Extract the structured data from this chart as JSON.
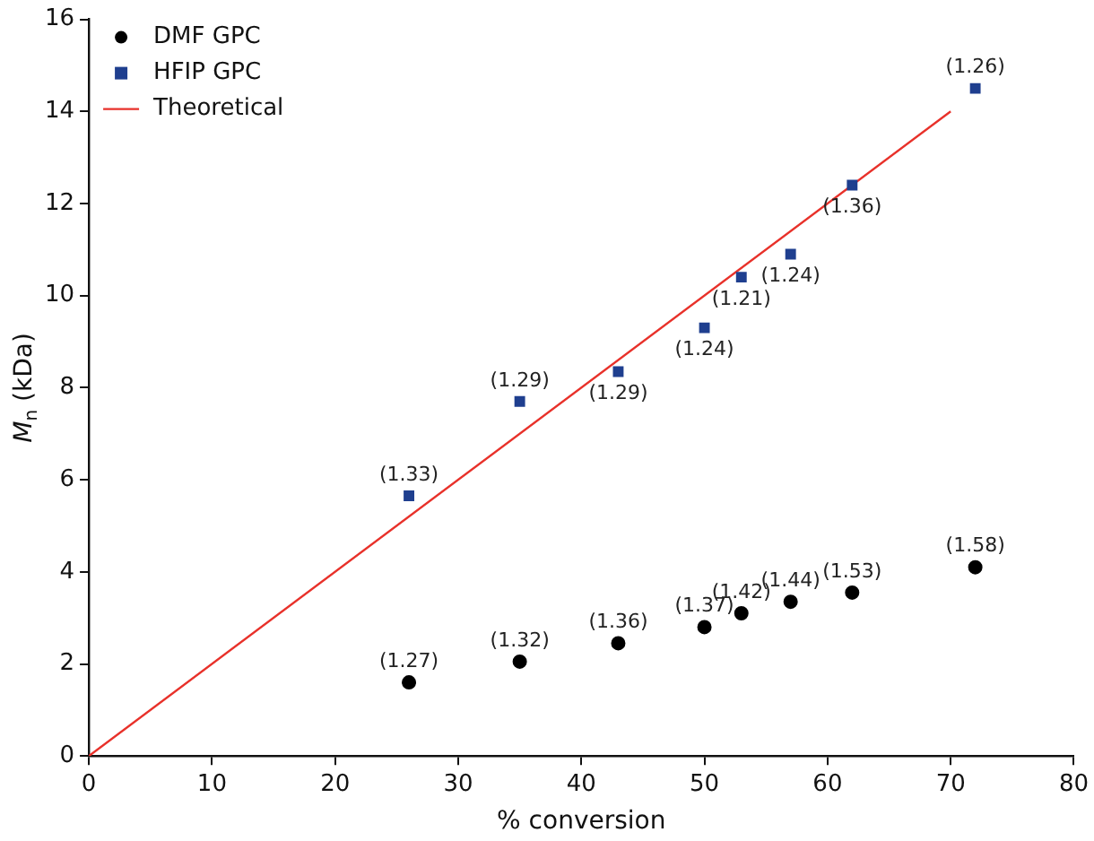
{
  "chart_data": {
    "type": "scatter",
    "xlabel": "% conversion",
    "ylabel": "M$_{n}$ (kDa)",
    "xlim": [
      0,
      80
    ],
    "xticks": [
      0,
      10,
      20,
      30,
      40,
      50,
      60,
      70,
      80
    ],
    "ylim": [
      0,
      16
    ],
    "yticks": [
      0,
      2,
      4,
      6,
      8,
      10,
      12,
      14,
      16
    ],
    "grid": false,
    "legend": "top left",
    "series": [
      {
        "name": "DMF GPC",
        "type": "scatter",
        "marker": "circle",
        "color": "#000000",
        "x": [
          26,
          35,
          43,
          50,
          53,
          57,
          62,
          72
        ],
        "values": [
          1.6,
          2.05,
          2.45,
          2.8,
          3.1,
          3.35,
          3.55,
          4.1
        ]
      },
      {
        "name": "HFIP GPC",
        "type": "scatter",
        "marker": "square",
        "color": "#1f3f8f",
        "x": [
          26,
          35,
          43,
          50,
          53,
          57,
          62,
          72
        ],
        "values": [
          5.65,
          7.7,
          8.35,
          9.3,
          10.4,
          10.9,
          12.4,
          14.5
        ]
      },
      {
        "name": "Theoretical",
        "type": "line",
        "marker": "none",
        "line_style": "solid",
        "color": "#e8312a",
        "x": [
          0,
          70
        ],
        "values": [
          0,
          14
        ]
      }
    ],
    "annotations": [
      {
        "text": "(1.27)",
        "x": 26,
        "y": 1.6
      },
      {
        "text": "(1.32)",
        "x": 35,
        "y": 2.05
      },
      {
        "text": "(1.36)",
        "x": 43,
        "y": 2.45
      },
      {
        "text": "(1.37)",
        "x": 50,
        "y": 2.8
      },
      {
        "text": "(1.42)",
        "x": 53,
        "y": 3.1
      },
      {
        "text": "(1.44)",
        "x": 57,
        "y": 3.35
      },
      {
        "text": "(1.53)",
        "x": 62,
        "y": 3.55
      },
      {
        "text": "(1.58)",
        "x": 72,
        "y": 4.1
      },
      {
        "text": "(1.33)",
        "x": 26,
        "y": 5.65
      },
      {
        "text": "(1.29)",
        "x": 35,
        "y": 7.7
      },
      {
        "text": "(1.29)",
        "x": 43,
        "y": 8.35
      },
      {
        "text": "(1.24)",
        "x": 50,
        "y": 9.3
      },
      {
        "text": "(1.21)",
        "x": 53,
        "y": 10.4
      },
      {
        "text": "(1.24)",
        "x": 57,
        "y": 10.9
      },
      {
        "text": "(1.36)",
        "x": 62,
        "y": 12.4
      },
      {
        "text": "(1.26)",
        "x": 72,
        "y": 14.5
      }
    ]
  }
}
